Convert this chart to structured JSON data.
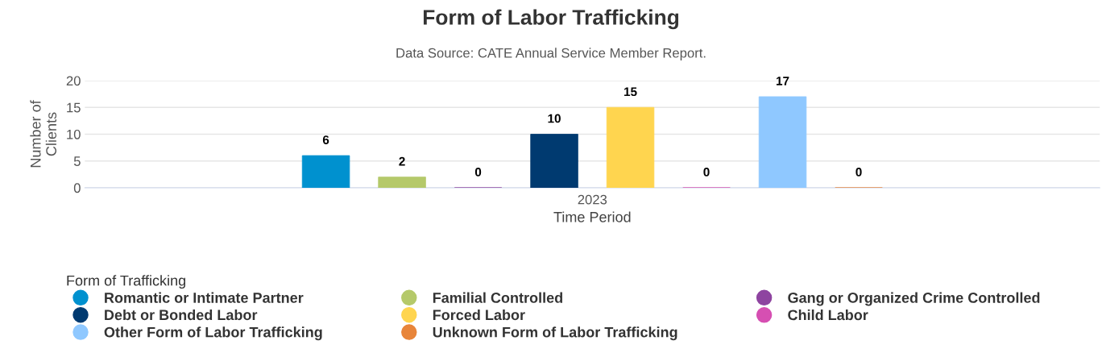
{
  "chart_data": {
    "type": "bar",
    "title": "Form of Labor Trafficking",
    "subtitle": "Data Source: CATE Annual Service Member Report.",
    "xlabel": "Time Period",
    "ylabel": "Number of\nClients",
    "legend_title": "Form of Trafficking",
    "categories": [
      "2023"
    ],
    "series": [
      {
        "name": "Romantic or Intimate Partner",
        "color": "#0091cf",
        "values": [
          6
        ]
      },
      {
        "name": "Familial Controlled",
        "color": "#b5c96a",
        "values": [
          2
        ]
      },
      {
        "name": "Gang or Organized Crime Controlled",
        "color": "#8e44a0",
        "values": [
          0
        ]
      },
      {
        "name": "Debt or Bonded Labor",
        "color": "#003a70",
        "values": [
          10
        ]
      },
      {
        "name": "Forced Labor",
        "color": "#ffd54f",
        "values": [
          15
        ]
      },
      {
        "name": "Child Labor",
        "color": "#d64fb2",
        "values": [
          0
        ]
      },
      {
        "name": "Other Form of Labor Trafficking",
        "color": "#8fc8ff",
        "values": [
          17
        ]
      },
      {
        "name": "Unknown Form of Labor Trafficking",
        "color": "#e8853a",
        "values": [
          0
        ]
      }
    ],
    "ylim": [
      0,
      20
    ],
    "yticks": [
      0,
      5,
      10,
      15,
      20
    ],
    "grid": "y",
    "data_labels": true,
    "legend": "bottom left"
  }
}
